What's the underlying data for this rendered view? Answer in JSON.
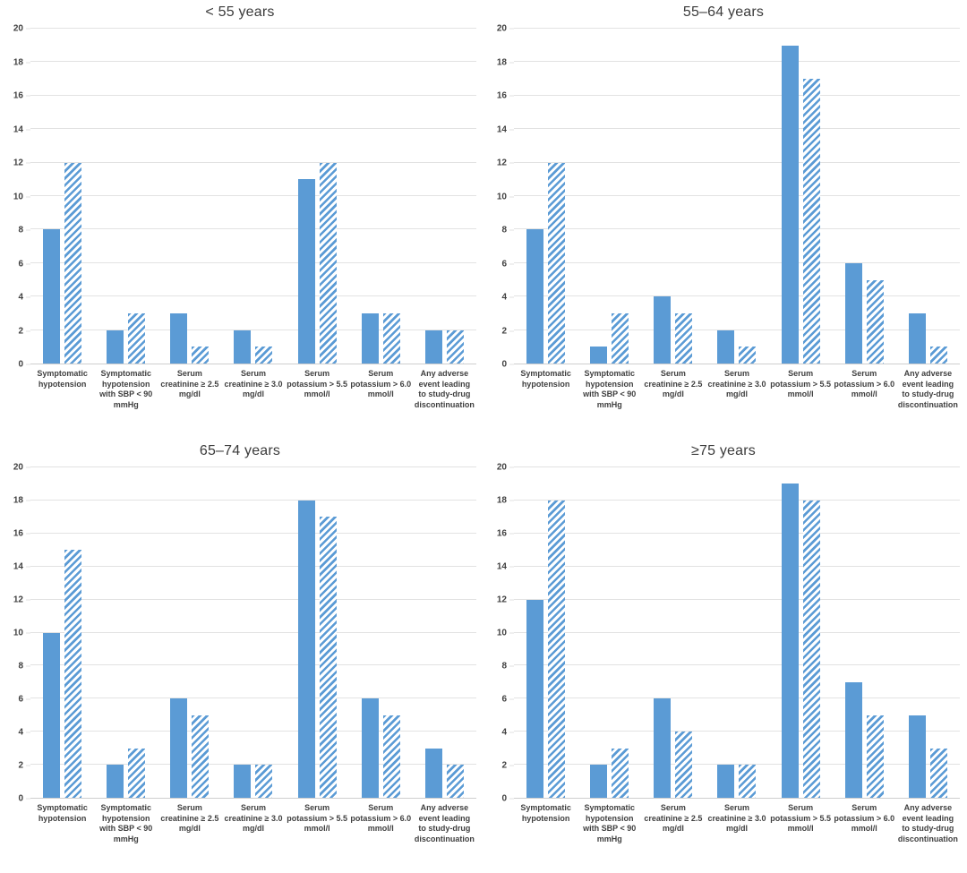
{
  "figure": {
    "layout": "2x2-grid",
    "legend": "none"
  },
  "style": {
    "bar_color": "#5b9bd5",
    "hatch_stripe_color": "#5b9bd5",
    "hatch_bg_color": "#ffffff",
    "grid_color": "#e2e2e2",
    "axisline_color": "#cfcfcf",
    "axis_text_color": "#404040",
    "title_color": "#3b3b3b"
  },
  "chart_data": [
    {
      "type": "bar",
      "title": "< 55 years",
      "categories": [
        "Symptomatic hypotension",
        "Symptomatic hypotension with SBP < 90 mmHg",
        "Serum creatinine ≥ 2.5 mg/dl",
        "Serum creatinine ≥ 3.0 mg/dl",
        "Serum potassium > 5.5 mmol/l",
        "Serum potassium > 6.0 mmol/l",
        "Any adverse event leading to study-drug discontinuation"
      ],
      "category_lines": [
        [
          "Symptomatic",
          "hypotension"
        ],
        [
          "Symptomatic",
          "hypotension",
          "with SBP < 90",
          "mmHg"
        ],
        [
          "Serum",
          "creatinine ≥ 2.5",
          "mg/dl"
        ],
        [
          "Serum",
          "creatinine ≥ 3.0",
          "mg/dl"
        ],
        [
          "Serum",
          "potassium > 5.5",
          "mmol/l"
        ],
        [
          "Serum",
          "potassium > 6.0",
          "mmol/l"
        ],
        [
          "Any adverse",
          "event leading",
          "to study-drug",
          "discontinuation"
        ]
      ],
      "series": [
        {
          "name": "solid-bar",
          "pattern": "solid",
          "values": [
            8,
            2,
            3,
            2,
            11,
            3,
            2
          ]
        },
        {
          "name": "hatched-bar",
          "pattern": "diagonal-hatch",
          "values": [
            12,
            3,
            1,
            1,
            12,
            3,
            2
          ]
        }
      ],
      "ylim": [
        0,
        20
      ],
      "ytick_step": 2,
      "grid": true,
      "xlabel": "",
      "ylabel": ""
    },
    {
      "type": "bar",
      "title": "55–64 years",
      "categories": [
        "Symptomatic hypotension",
        "Symptomatic hypotension with SBP < 90 mmHg",
        "Serum creatinine ≥ 2.5 mg/dl",
        "Serum creatinine ≥ 3.0 mg/dl",
        "Serum potassium > 5.5 mmol/l",
        "Serum potassium > 6.0 mmol/l",
        "Any adverse event leading to study-drug discontinuation"
      ],
      "category_lines": [
        [
          "Symptomatic",
          "hypotension"
        ],
        [
          "Symptomatic",
          "hypotension",
          "with SBP < 90",
          "mmHg"
        ],
        [
          "Serum",
          "creatinine ≥ 2.5",
          "mg/dl"
        ],
        [
          "Serum",
          "creatinine ≥ 3.0",
          "mg/dl"
        ],
        [
          "Serum",
          "potassium > 5.5",
          "mmol/l"
        ],
        [
          "Serum",
          "potassium > 6.0",
          "mmol/l"
        ],
        [
          "Any adverse",
          "event leading",
          "to study-drug",
          "discontinuation"
        ]
      ],
      "series": [
        {
          "name": "solid-bar",
          "pattern": "solid",
          "values": [
            8,
            1,
            4,
            2,
            19,
            6,
            3
          ]
        },
        {
          "name": "hatched-bar",
          "pattern": "diagonal-hatch",
          "values": [
            12,
            3,
            3,
            1,
            17,
            5,
            1
          ]
        }
      ],
      "ylim": [
        0,
        20
      ],
      "ytick_step": 2,
      "grid": true,
      "xlabel": "",
      "ylabel": ""
    },
    {
      "type": "bar",
      "title": "65–74 years",
      "categories": [
        "Symptomatic hypotension",
        "Symptomatic hypotension with SBP < 90 mmHg",
        "Serum creatinine ≥ 2.5 mg/dl",
        "Serum creatinine ≥ 3.0 mg/dl",
        "Serum potassium > 5.5 mmol/l",
        "Serum potassium > 6.0 mmol/l",
        "Any adverse event leading to study-drug discontinuation"
      ],
      "category_lines": [
        [
          "Symptomatic",
          "hypotension"
        ],
        [
          "Symptomatic",
          "hypotension",
          "with SBP < 90",
          "mmHg"
        ],
        [
          "Serum",
          "creatinine ≥ 2.5",
          "mg/dl"
        ],
        [
          "Serum",
          "creatinine ≥ 3.0",
          "mg/dl"
        ],
        [
          "Serum",
          "potassium > 5.5",
          "mmol/l"
        ],
        [
          "Serum",
          "potassium > 6.0",
          "mmol/l"
        ],
        [
          "Any adverse",
          "event leading",
          "to study-drug",
          "discontinuation"
        ]
      ],
      "series": [
        {
          "name": "solid-bar",
          "pattern": "solid",
          "values": [
            10,
            2,
            6,
            2,
            18,
            6,
            3
          ]
        },
        {
          "name": "hatched-bar",
          "pattern": "diagonal-hatch",
          "values": [
            15,
            3,
            5,
            2,
            17,
            5,
            2
          ]
        }
      ],
      "ylim": [
        0,
        20
      ],
      "ytick_step": 2,
      "grid": true,
      "xlabel": "",
      "ylabel": ""
    },
    {
      "type": "bar",
      "title": "≥75 years",
      "categories": [
        "Symptomatic hypotension",
        "Symptomatic hypotension with SBP < 90 mmHg",
        "Serum creatinine ≥ 2.5 mg/dl",
        "Serum creatinine ≥ 3.0 mg/dl",
        "Serum potassium > 5.5 mmol/l",
        "Serum potassium > 6.0 mmol/l",
        "Any adverse event leading to study-drug discontinuation"
      ],
      "category_lines": [
        [
          "Symptomatic",
          "hypotension"
        ],
        [
          "Symptomatic",
          "hypotension",
          "with SBP < 90",
          "mmHg"
        ],
        [
          "Serum",
          "creatinine ≥ 2.5",
          "mg/dl"
        ],
        [
          "Serum",
          "creatinine ≥ 3.0",
          "mg/dl"
        ],
        [
          "Serum",
          "potassium > 5.5",
          "mmol/l"
        ],
        [
          "Serum",
          "potassium > 6.0",
          "mmol/l"
        ],
        [
          "Any adverse",
          "event leading",
          "to study-drug",
          "discontinuation"
        ]
      ],
      "series": [
        {
          "name": "solid-bar",
          "pattern": "solid",
          "values": [
            12,
            2,
            6,
            2,
            19,
            7,
            5
          ]
        },
        {
          "name": "hatched-bar",
          "pattern": "diagonal-hatch",
          "values": [
            18,
            3,
            4,
            2,
            18,
            5,
            3
          ]
        }
      ],
      "ylim": [
        0,
        20
      ],
      "ytick_step": 2,
      "grid": true,
      "xlabel": "",
      "ylabel": ""
    }
  ]
}
